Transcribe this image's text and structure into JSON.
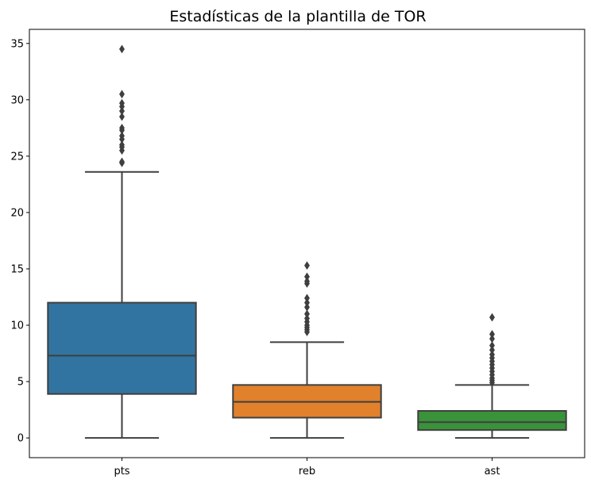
{
  "chart_data": {
    "type": "box",
    "title": "Estadísticas de la plantilla de TOR",
    "xlabel": "",
    "ylabel": "",
    "ylim": [
      -1.75,
      36.25
    ],
    "yticks": [
      0,
      5,
      10,
      15,
      20,
      25,
      30,
      35
    ],
    "grid": false,
    "categories": [
      "pts",
      "reb",
      "ast"
    ],
    "colors": [
      "#3274a1",
      "#e1812c",
      "#3a923a"
    ],
    "boxes": [
      {
        "name": "pts",
        "whisker_low": 0,
        "q1": 3.9,
        "median": 7.3,
        "q3": 12.0,
        "whisker_high": 23.6,
        "outliers": [
          24.4,
          24.5,
          25.5,
          25.8,
          26.0,
          26.5,
          26.8,
          27.3,
          27.5,
          28.5,
          29.0,
          29.4,
          29.7,
          30.5,
          34.5
        ]
      },
      {
        "name": "reb",
        "whisker_low": 0,
        "q1": 1.8,
        "median": 3.2,
        "q3": 4.7,
        "whisker_high": 8.5,
        "outliers": [
          9.4,
          9.6,
          9.8,
          10.0,
          10.3,
          10.6,
          11.0,
          11.6,
          12.0,
          12.4,
          13.7,
          13.9,
          14.3,
          15.3
        ]
      },
      {
        "name": "ast",
        "whisker_low": 0,
        "q1": 0.7,
        "median": 1.4,
        "q3": 2.4,
        "whisker_high": 4.7,
        "outliers": [
          4.9,
          5.1,
          5.3,
          5.6,
          5.9,
          6.2,
          6.5,
          6.8,
          7.1,
          7.4,
          7.8,
          8.2,
          8.8,
          9.2,
          10.7
        ]
      }
    ]
  }
}
